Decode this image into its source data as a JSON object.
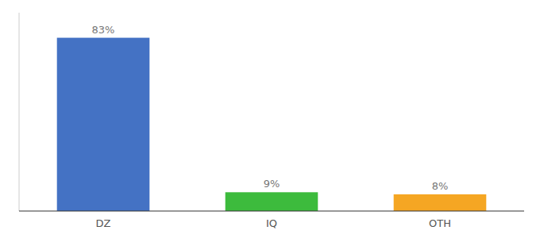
{
  "chart_data": {
    "type": "bar",
    "categories": [
      "DZ",
      "IQ",
      "OTH"
    ],
    "values": [
      83,
      9,
      8
    ],
    "value_labels": [
      "83%",
      "9%",
      "8%"
    ],
    "data_labels": true,
    "colors": [
      "#4472c4",
      "#3dbb3d",
      "#f5a623"
    ],
    "ylim": [
      0,
      95
    ],
    "tick_labels": "x"
  }
}
